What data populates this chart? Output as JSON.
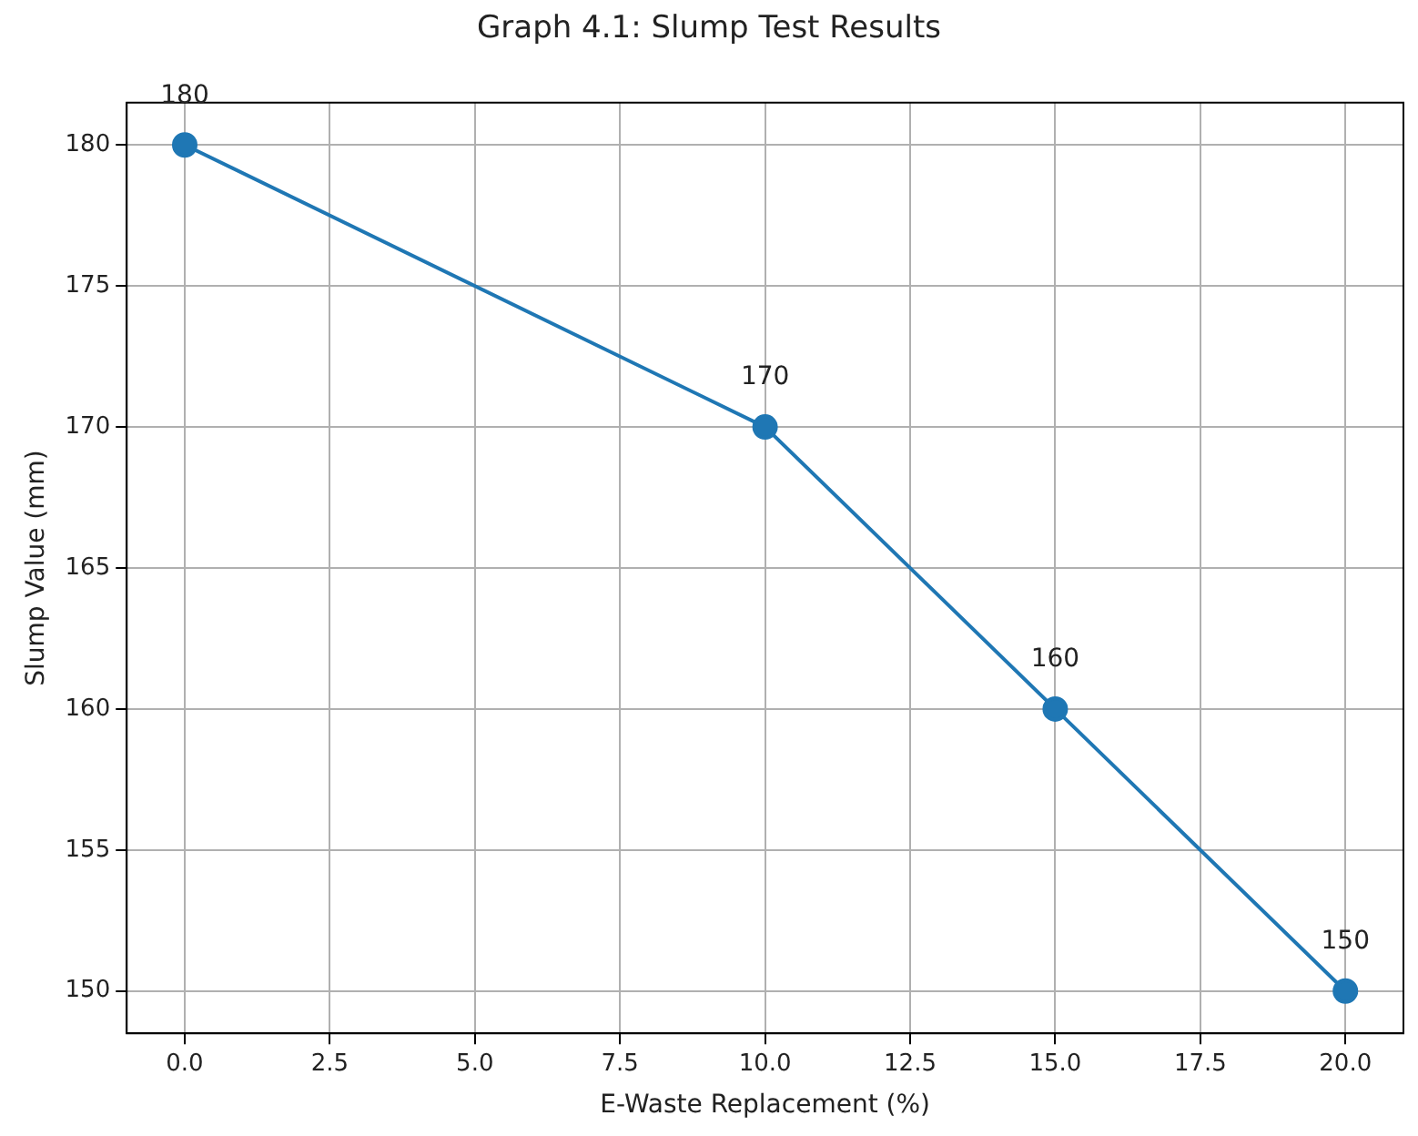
{
  "chart_data": {
    "type": "line",
    "title": "Graph 4.1: Slump Test Results",
    "xlabel": "E-Waste Replacement (%)",
    "ylabel": "Slump Value (mm)",
    "x": [
      0,
      10,
      15,
      20
    ],
    "series": [
      {
        "color": "#1f77b4",
        "values": [
          180,
          170,
          160,
          150
        ]
      }
    ],
    "xlim": [
      -1,
      21
    ],
    "xticks": [
      {
        "value": 0,
        "label": "0.0"
      },
      {
        "value": 2.5,
        "label": "2.5"
      },
      {
        "value": 5,
        "label": "5.0"
      },
      {
        "value": 7.5,
        "label": "7.5"
      },
      {
        "value": 10,
        "label": "10.0"
      },
      {
        "value": 12.5,
        "label": "12.5"
      },
      {
        "value": 15,
        "label": "15.0"
      },
      {
        "value": 17.5,
        "label": "17.5"
      },
      {
        "value": 20,
        "label": "20.0"
      }
    ],
    "ylim": [
      148.5,
      181.5
    ],
    "yticks": [
      150,
      155,
      160,
      165,
      170,
      175,
      180
    ],
    "grid": true,
    "legend": false,
    "marker": "circle",
    "line_style": "solid",
    "data_labels": true
  }
}
